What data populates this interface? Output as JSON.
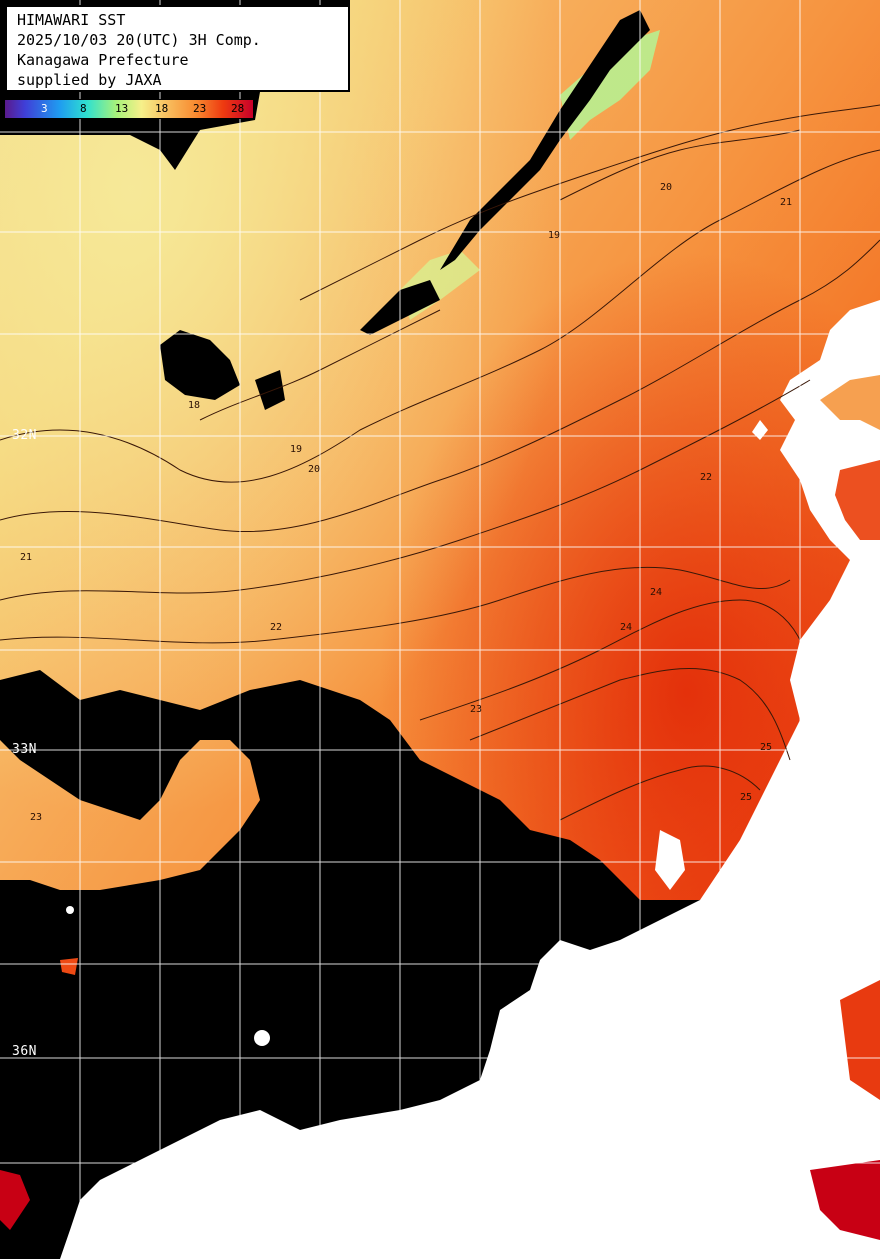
{
  "header": {
    "line1": "HIMAWARI SST",
    "line2": "2025/10/03 20(UTC) 3H Comp.",
    "line3": "Kanagawa Prefecture",
    "line4": "supplied by JAXA"
  },
  "colorbar": {
    "ticks": [
      "3",
      "8",
      "13",
      "18",
      "23",
      "28"
    ],
    "colors": [
      "#5a1a8c",
      "#3f3fd8",
      "#1f9cf0",
      "#2fe0d0",
      "#a8f27a",
      "#f6f08a",
      "#f8c060",
      "#f88a30",
      "#ee3a10",
      "#c8002a"
    ]
  },
  "grid": {
    "lat_labels": [
      "32N",
      "33N",
      "36N"
    ]
  },
  "isotherms": {
    "labels": [
      "18",
      "19",
      "20",
      "21",
      "22",
      "23",
      "24",
      "25"
    ]
  },
  "colors": {
    "land": "#ffffff",
    "cloud_mask": "#000000",
    "grid_line": "#ffffff",
    "contour": "#3a1808"
  }
}
